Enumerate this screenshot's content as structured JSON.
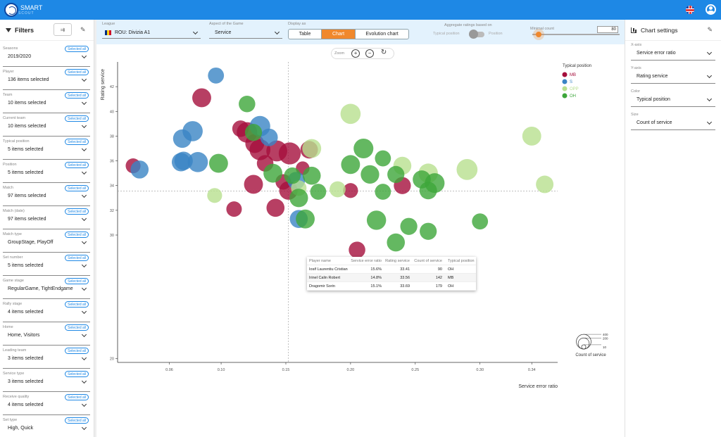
{
  "app": {
    "logo_text": "SMART",
    "logo_sub": "SCOUT"
  },
  "filters": {
    "title": "Filters",
    "items": [
      {
        "label": "Seasons",
        "value": "2019/2020",
        "badge": "Selected all"
      },
      {
        "label": "Player",
        "value": "136 items selected",
        "badge": "Selected all"
      },
      {
        "label": "Team",
        "value": "10 items selected",
        "badge": "Selected all"
      },
      {
        "label": "Current team",
        "value": "10 items selected",
        "badge": "Selected all"
      },
      {
        "label": "Typical position",
        "value": "5 items selected",
        "badge": "Selected all"
      },
      {
        "label": "Position",
        "value": "5 items selected",
        "badge": "Selected all"
      },
      {
        "label": "Match",
        "value": "97 items selected",
        "badge": "Selected all"
      },
      {
        "label": "Match (date)",
        "value": "97 items selected",
        "badge": "Selected all"
      },
      {
        "label": "Match type",
        "value": "GroupStage, PlayOff",
        "badge": "Selected all"
      },
      {
        "label": "Set number",
        "value": "5 items selected",
        "badge": "Selected all"
      },
      {
        "label": "Game stage",
        "value": "RegularGame, TightEndgame",
        "badge": "Selected all"
      },
      {
        "label": "Rally stage",
        "value": "4 items selected",
        "badge": "Selected all"
      },
      {
        "label": "Home",
        "value": "Home, Visitors",
        "badge": "Selected all"
      },
      {
        "label": "Leading team",
        "value": "3 items selected",
        "badge": "Selected all"
      },
      {
        "label": "Service type",
        "value": "3 items selected",
        "badge": "Selected all"
      },
      {
        "label": "Receive quality",
        "value": "4 items selected",
        "badge": "Selected all"
      },
      {
        "label": "Set type",
        "value": "High, Quick",
        "badge": "Selected all"
      }
    ]
  },
  "controls": {
    "league_label": "League",
    "league_value": "ROU: Divizia A1",
    "aspect_label": "Aspect of the Game",
    "aspect_value": "Service",
    "display_label": "Display as",
    "display_options": [
      "Table",
      "Chart",
      "Evolution chart"
    ],
    "display_selected": "Chart",
    "aggregate_label": "Aggregate ratings based on",
    "aggregate_left": "Typical position",
    "aggregate_right": "Position",
    "min_count_label": "Minimal count",
    "min_count_value": "80"
  },
  "zoom": {
    "label": "Zoom",
    "in_icon": "zoom-in-icon",
    "out_icon": "zoom-out-icon",
    "reset_icon": "reset-icon"
  },
  "chart_data": {
    "type": "scatter",
    "title": "",
    "xlabel": "Service error ratio",
    "ylabel": "Rating service",
    "xlim": [
      0.02,
      0.36
    ],
    "ylim": [
      19.7,
      44
    ],
    "x_ticks": [
      0.06,
      0.1,
      0.15,
      0.2,
      0.25,
      0.3,
      0.34
    ],
    "y_ticks": [
      20,
      30,
      32,
      34,
      36,
      38,
      40,
      42
    ],
    "legend_title": "Typical position",
    "legend_position": "top-right",
    "size_legend_title": "Count of service",
    "size_legend_values": [
      400,
      200,
      10
    ],
    "crosshair": {
      "x": 0.152,
      "y": 33.56
    },
    "categories": [
      {
        "name": "MB",
        "color": "#a50f3c"
      },
      {
        "name": "S",
        "color": "#3a84c4"
      },
      {
        "name": "OPP",
        "color": "#b8e08e"
      },
      {
        "name": "OH",
        "color": "#3da63a"
      }
    ],
    "series": [
      {
        "name": "MB",
        "points": [
          [
            0.085,
            41.1,
            170
          ],
          [
            0.115,
            38.6,
            120
          ],
          [
            0.12,
            38.3,
            210
          ],
          [
            0.126,
            37.4,
            170
          ],
          [
            0.13,
            36.9,
            220
          ],
          [
            0.134,
            35.8,
            120
          ],
          [
            0.143,
            36.8,
            220
          ],
          [
            0.148,
            34.3,
            100
          ],
          [
            0.153,
            36.6,
            250
          ],
          [
            0.168,
            36.9,
            140
          ],
          [
            0.032,
            35.6,
            90
          ],
          [
            0.125,
            34.1,
            170
          ],
          [
            0.142,
            32.2,
            150
          ],
          [
            0.11,
            32.1,
            100
          ],
          [
            0.152,
            33.6,
            160
          ],
          [
            0.163,
            35.4,
            70
          ],
          [
            0.24,
            34.0,
            130
          ],
          [
            0.2,
            33.6,
            90
          ],
          [
            0.205,
            28.8,
            120
          ]
        ]
      },
      {
        "name": "S",
        "points": [
          [
            0.096,
            42.9,
            110
          ],
          [
            0.07,
            37.8,
            160
          ],
          [
            0.078,
            38.4,
            200
          ],
          [
            0.13,
            38.8,
            210
          ],
          [
            0.137,
            37.9,
            140
          ],
          [
            0.069,
            35.9,
            160
          ],
          [
            0.071,
            36.0,
            160
          ],
          [
            0.082,
            35.9,
            200
          ],
          [
            0.037,
            35.3,
            150
          ],
          [
            0.158,
            34.4,
            140
          ],
          [
            0.16,
            31.3,
            150
          ]
        ]
      },
      {
        "name": "OPP",
        "points": [
          [
            0.2,
            39.8,
            200
          ],
          [
            0.34,
            38.0,
            170
          ],
          [
            0.17,
            37.0,
            170
          ],
          [
            0.24,
            35.6,
            150
          ],
          [
            0.26,
            35.0,
            180
          ],
          [
            0.29,
            35.3,
            220
          ],
          [
            0.35,
            34.1,
            140
          ],
          [
            0.095,
            33.2,
            90
          ],
          [
            0.19,
            33.7,
            110
          ],
          [
            0.16,
            33.8,
            100
          ]
        ]
      },
      {
        "name": "OH",
        "points": [
          [
            0.12,
            40.6,
            120
          ],
          [
            0.125,
            38.3,
            130
          ],
          [
            0.21,
            37.0,
            190
          ],
          [
            0.225,
            36.2,
            110
          ],
          [
            0.2,
            35.7,
            170
          ],
          [
            0.098,
            35.8,
            170
          ],
          [
            0.14,
            35.0,
            170
          ],
          [
            0.155,
            34.8,
            120
          ],
          [
            0.17,
            34.8,
            150
          ],
          [
            0.215,
            34.9,
            160
          ],
          [
            0.235,
            34.9,
            130
          ],
          [
            0.255,
            34.5,
            150
          ],
          [
            0.265,
            34.2,
            190
          ],
          [
            0.175,
            33.5,
            110
          ],
          [
            0.225,
            33.5,
            110
          ],
          [
            0.26,
            33.6,
            140
          ],
          [
            0.16,
            33.0,
            160
          ],
          [
            0.22,
            31.2,
            180
          ],
          [
            0.165,
            31.3,
            170
          ],
          [
            0.245,
            30.7,
            130
          ],
          [
            0.26,
            30.3,
            130
          ],
          [
            0.235,
            29.4,
            150
          ],
          [
            0.3,
            31.1,
            110
          ]
        ]
      }
    ]
  },
  "tooltip": {
    "headers": [
      "Player name",
      "Service error ratio",
      "Rating service",
      "Count of service",
      "Typical position"
    ],
    "rows": [
      [
        "Iosif Laurentiu Cristian",
        "15.6%",
        "33.41",
        "90",
        "OH"
      ],
      [
        "Irinel Calin Robert",
        "14.8%",
        "33.56",
        "142",
        "MB"
      ],
      [
        "Dragomir Sorin",
        "15.1%",
        "33.69",
        "179",
        "OH"
      ]
    ]
  },
  "chart_settings": {
    "title": "Chart settings",
    "items": [
      {
        "label": "X-axis",
        "value": "Service error ratio"
      },
      {
        "label": "Y-axis",
        "value": "Rating service"
      },
      {
        "label": "Color",
        "value": "Typical position"
      },
      {
        "label": "Size",
        "value": "Count of service"
      }
    ]
  }
}
